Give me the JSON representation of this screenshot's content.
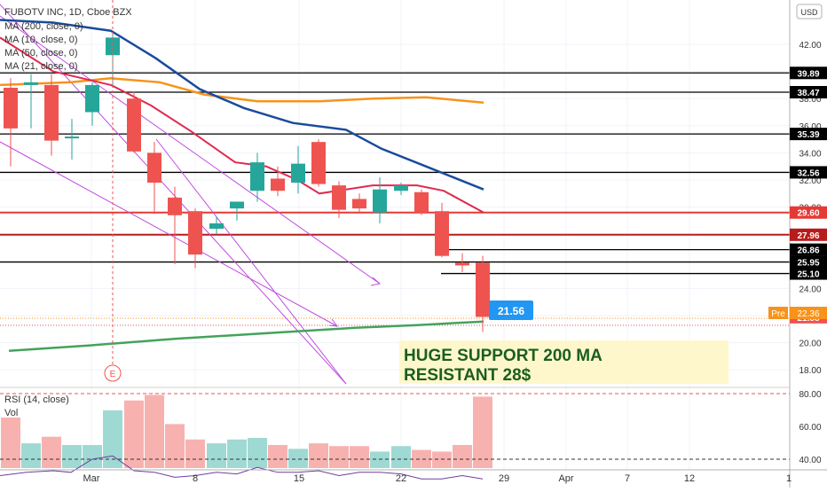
{
  "legend": {
    "symbol": "FUBOTV INC, 1D, Cboe BZX",
    "ma200": "MA (200, close, 0)",
    "ma10": "MA (10, close, 0)",
    "ma50": "MA (50, close, 0)",
    "ma21": "MA (21, close, 0)",
    "rsi": "RSI (14, close)",
    "vol": "Vol"
  },
  "currency_button": "USD",
  "annotation": {
    "line1": "HUGE SUPPORT 200 MA",
    "line2": "RESISTANT 28$",
    "earnings_marker": "E"
  },
  "colors": {
    "up": "#26a69a",
    "down": "#ef5350",
    "ma10": "#e0294f",
    "ma21": "#1a4b9c",
    "ma50": "#f7931a",
    "ma200": "#43a35b",
    "trend": "#c04ce0",
    "highlight": "#2196f3"
  },
  "chart_data": {
    "type": "candlestick",
    "x_axis_labels": [
      "Mar",
      "8",
      "15",
      "22",
      "29",
      "Apr",
      "7",
      "12",
      "1"
    ],
    "y_ticks": [
      42.0,
      40.0,
      38.0,
      36.0,
      34.0,
      32.0,
      30.0,
      28.0,
      26.0,
      24.0,
      22.0,
      20.0,
      18.0
    ],
    "rsi_ticks": [
      80.0,
      60.0,
      40.0
    ],
    "ylim": [
      17.5,
      44.0
    ],
    "candles": [
      {
        "o": 38.8,
        "h": 39.5,
        "l": 33.0,
        "c": 35.8
      },
      {
        "o": 39.0,
        "h": 39.8,
        "l": 35.8,
        "c": 39.2
      },
      {
        "o": 39.0,
        "h": 39.8,
        "l": 33.8,
        "c": 34.9
      },
      {
        "o": 35.2,
        "h": 36.5,
        "l": 33.5,
        "c": 35.2
      },
      {
        "o": 37.0,
        "h": 39.2,
        "l": 36.0,
        "c": 39.0
      },
      {
        "o": 41.2,
        "h": 42.8,
        "l": 38.8,
        "c": 42.5
      },
      {
        "o": 38.0,
        "h": 38.5,
        "l": 34.0,
        "c": 34.1
      },
      {
        "o": 34.0,
        "h": 34.8,
        "l": 29.5,
        "c": 31.8
      },
      {
        "o": 30.7,
        "h": 31.5,
        "l": 25.8,
        "c": 29.4
      },
      {
        "o": 29.7,
        "h": 29.9,
        "l": 25.5,
        "c": 26.5
      },
      {
        "o": 28.4,
        "h": 29.3,
        "l": 28.0,
        "c": 28.8
      },
      {
        "o": 29.9,
        "h": 30.4,
        "l": 29.0,
        "c": 30.4
      },
      {
        "o": 31.2,
        "h": 34.0,
        "l": 30.4,
        "c": 33.3
      },
      {
        "o": 32.1,
        "h": 33.0,
        "l": 30.8,
        "c": 31.2
      },
      {
        "o": 31.8,
        "h": 34.5,
        "l": 31.0,
        "c": 33.2
      },
      {
        "o": 34.8,
        "h": 35.0,
        "l": 31.5,
        "c": 31.7
      },
      {
        "o": 31.6,
        "h": 31.9,
        "l": 29.2,
        "c": 29.8
      },
      {
        "o": 30.6,
        "h": 31.0,
        "l": 29.6,
        "c": 29.9
      },
      {
        "o": 29.6,
        "h": 32.2,
        "l": 28.8,
        "c": 31.3
      },
      {
        "o": 31.2,
        "h": 31.8,
        "l": 30.9,
        "c": 31.6
      },
      {
        "o": 31.1,
        "h": 31.3,
        "l": 29.4,
        "c": 29.6
      },
      {
        "o": 29.7,
        "h": 30.3,
        "l": 26.3,
        "c": 26.4
      },
      {
        "o": 25.9,
        "h": 26.6,
        "l": 25.2,
        "c": 25.7
      },
      {
        "o": 25.9,
        "h": 26.4,
        "l": 20.8,
        "c": 21.9
      }
    ],
    "candle_x": [
      12,
      35,
      58,
      81,
      104,
      127,
      151,
      174,
      197,
      220,
      244,
      267,
      290,
      313,
      336,
      359,
      382,
      405,
      428,
      452,
      475,
      498,
      521,
      544
    ],
    "ma10": [
      [
        0,
        42.5
      ],
      [
        60,
        40.0
      ],
      [
        125,
        39.0
      ],
      [
        170,
        37.5
      ],
      [
        215,
        35.6
      ],
      [
        265,
        33.3
      ],
      [
        300,
        33.0
      ],
      [
        335,
        32.0
      ],
      [
        360,
        31.0
      ],
      [
        420,
        31.6
      ],
      [
        470,
        31.6
      ],
      [
        500,
        31.2
      ],
      [
        545,
        29.6
      ]
    ],
    "ma21": [
      [
        0,
        43.8
      ],
      [
        60,
        43.6
      ],
      [
        125,
        43.0
      ],
      [
        175,
        41.0
      ],
      [
        225,
        38.7
      ],
      [
        275,
        37.3
      ],
      [
        330,
        36.2
      ],
      [
        390,
        35.7
      ],
      [
        430,
        34.3
      ],
      [
        480,
        33.0
      ],
      [
        545,
        31.3
      ]
    ],
    "ma50": [
      [
        0,
        39.0
      ],
      [
        80,
        39.2
      ],
      [
        125,
        39.5
      ],
      [
        180,
        39.2
      ],
      [
        230,
        38.3
      ],
      [
        290,
        37.8
      ],
      [
        360,
        37.8
      ],
      [
        420,
        38.0
      ],
      [
        480,
        38.1
      ],
      [
        545,
        37.7
      ]
    ],
    "ma200": [
      [
        10,
        19.4
      ],
      [
        100,
        19.8
      ],
      [
        200,
        20.3
      ],
      [
        300,
        20.7
      ],
      [
        400,
        21.1
      ],
      [
        470,
        21.3
      ],
      [
        545,
        21.56
      ]
    ],
    "horizontal_levels": [
      {
        "value": 39.89,
        "label": "39.89",
        "color": "#000000"
      },
      {
        "value": 38.47,
        "label": "38.47",
        "color": "#000000"
      },
      {
        "value": 35.39,
        "label": "35.39",
        "color": "#000000"
      },
      {
        "value": 32.56,
        "label": "32.56",
        "color": "#000000"
      },
      {
        "value": 29.6,
        "label": "29.60",
        "color": "#e53935"
      },
      {
        "value": 27.96,
        "label": "27.96",
        "color": "#b71c1c"
      },
      {
        "value": 26.86,
        "label": "26.86",
        "color": "#000000"
      },
      {
        "value": 25.95,
        "label": "25.95",
        "color": "#000000"
      },
      {
        "value": 25.1,
        "label": "25.10",
        "color": "#000000"
      },
      {
        "value": 21.88,
        "label": "21.88",
        "color": "#ef5350"
      }
    ],
    "pre_label": "Pre",
    "pre_value": "22.36",
    "ma200_value": "21.56",
    "volume": [
      0.92,
      0.45,
      0.57,
      0.42,
      0.42,
      1.05,
      1.23,
      1.33,
      0.8,
      0.52,
      0.45,
      0.52,
      0.55,
      0.42,
      0.35,
      0.45,
      0.4,
      0.4,
      0.3,
      0.4,
      0.33,
      0.3,
      0.42,
      1.3
    ],
    "rsi": [
      [
        0,
        30.0
      ],
      [
        30,
        32.0
      ],
      [
        60,
        33.0
      ],
      [
        80,
        32.0
      ],
      [
        104,
        40.0
      ],
      [
        127,
        42.0
      ],
      [
        151,
        33.0
      ],
      [
        174,
        32.0
      ],
      [
        197,
        29.0
      ],
      [
        220,
        30.0
      ],
      [
        244,
        32.0
      ],
      [
        267,
        31.0
      ],
      [
        290,
        35.0
      ],
      [
        313,
        32.0
      ],
      [
        336,
        32.0
      ],
      [
        359,
        33.0
      ],
      [
        382,
        30.0
      ],
      [
        405,
        32.0
      ],
      [
        428,
        32.0
      ],
      [
        452,
        31.0
      ],
      [
        475,
        28.0
      ],
      [
        498,
        28.0
      ],
      [
        521,
        30.0
      ],
      [
        544,
        28.0
      ]
    ]
  }
}
